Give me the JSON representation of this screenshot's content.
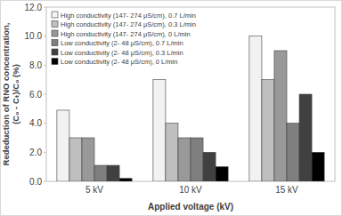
{
  "chart_data": {
    "type": "bar",
    "y_label": [
      "Rededuction of RNO concentration,",
      "(C₀ - Cₜ)/C₀ (%)"
    ],
    "x_label": "Applied voltage (kV)",
    "categories": [
      "5 kV",
      "10 kV",
      "15 kV"
    ],
    "series": [
      {
        "name": "High conductivity (147- 274 μS/cm), 0.7 L/min",
        "color": "#f2f2f2",
        "values": [
          4.9,
          7.0,
          10.0
        ]
      },
      {
        "name": "High conductivity (147- 274 μS/cm), 0.3 L/min",
        "color": "#bfbfbf",
        "values": [
          3.0,
          4.0,
          7.0
        ]
      },
      {
        "name": "High conductivity (147- 274 μS/cm), 0 L/min",
        "color": "#999999",
        "values": [
          3.0,
          3.0,
          9.0
        ]
      },
      {
        "name": "Low conductivity (2- 48 μS/cm), 0.7 L/min",
        "color": "#7f7f7f",
        "values": [
          1.1,
          3.0,
          4.0
        ]
      },
      {
        "name": "Low conductivity (2- 48 μS/cm), 0.3 L/min",
        "color": "#404040",
        "values": [
          1.1,
          2.0,
          6.0
        ]
      },
      {
        "name": "Low conductivity (2- 48 μS/cm), 0 L/min",
        "color": "#000000",
        "values": [
          0.2,
          1.0,
          2.0
        ]
      }
    ],
    "ylim": [
      0,
      12
    ],
    "yticks": [
      {
        "value": 0,
        "label": "0.0"
      },
      {
        "value": 2,
        "label": "2.0"
      },
      {
        "value": 4,
        "label": "4.0"
      },
      {
        "value": 6,
        "label": "6.0"
      },
      {
        "value": 8,
        "label": "8.0"
      },
      {
        "value": 10,
        "label": "10.0"
      },
      {
        "value": 12,
        "label": "12.0"
      }
    ],
    "grid": false,
    "legend": "upper left"
  }
}
